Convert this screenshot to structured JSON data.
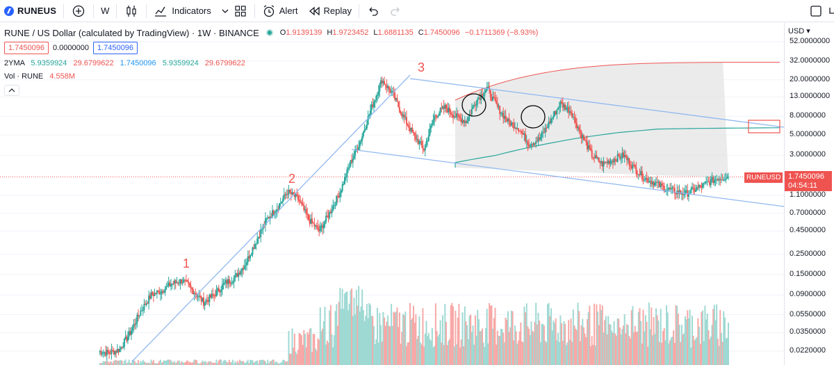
{
  "toolbar": {
    "symbol": "RUNEUS",
    "interval": "W",
    "indicators_label": "Indicators",
    "alert_label": "Alert",
    "replay_label": "Replay"
  },
  "legend": {
    "title": "RUNE / US Dollar (calculated by TradingView) · 1W · BINANCE",
    "o_label": "O",
    "o": "1.9139139",
    "h_label": "H",
    "h": "1.9723452",
    "l_label": "L",
    "l": "1.6881135",
    "c_label": "C",
    "c": "1.7450096",
    "change": "−0.1711369 (−8.93%)",
    "box_left": "1.7450096",
    "box_mid": "0.0000000",
    "box_right": "1.7450096",
    "ma_name": "2YMA",
    "ma_v1": "5.9359924",
    "ma_v2": "29.6799622",
    "ma_v3": "1.7450096",
    "ma_v4": "5.9359924",
    "ma_v5": "29.6799622",
    "vol_name": "Vol · RUNE",
    "vol_value": "4.558M"
  },
  "axis": {
    "currency": "USD",
    "ticks": [
      "52.0000000",
      "32.0000000",
      "20.0000000",
      "13.0000000",
      "8.0000000",
      "5.0000000",
      "3.0000000",
      "1.7450096",
      "1.1000000",
      "0.7000000",
      "0.4500000",
      "0.2500000",
      "0.1500000",
      "0.0900000",
      "0.0550000",
      "0.0350000",
      "0.0220000"
    ],
    "last_price": "1.7450096",
    "countdown": "04:54:11",
    "symbol_tag": "RUNEUSD"
  },
  "annotations": {
    "wave1": "1",
    "wave2": "2",
    "wave3": "3"
  },
  "colors": {
    "up": "#26a69a",
    "down": "#ef5350",
    "trend": "#90b8f0",
    "ma_upper": "#ef5350",
    "ma_mid": "#26a69a",
    "accent": "#2962ff"
  },
  "chart_data": {
    "type": "candlestick",
    "title": "RUNE / US Dollar (calculated by TradingView) · 1W · BINANCE",
    "y_scale": "log",
    "ylim": [
      0.019,
      60
    ],
    "y_ticks": [
      52,
      32,
      20,
      13,
      8,
      5,
      3,
      1.1,
      0.7,
      0.45,
      0.25,
      0.15,
      0.09,
      0.055,
      0.035,
      0.022
    ],
    "last_close": 1.7450096,
    "series": [
      {
        "name": "RUNE / US Dollar",
        "close_path": [
          0.022,
          0.021,
          0.023,
          0.035,
          0.06,
          0.09,
          0.1,
          0.12,
          0.13,
          0.1,
          0.075,
          0.09,
          0.12,
          0.14,
          0.2,
          0.35,
          0.6,
          0.8,
          1.2,
          1.0,
          0.6,
          0.45,
          0.7,
          1.2,
          2.5,
          4.5,
          10,
          20,
          14,
          8,
          5,
          3.5,
          8,
          10,
          8,
          7,
          12,
          16,
          10,
          7,
          6,
          4,
          4.5,
          7,
          11,
          9,
          5,
          3,
          2.4,
          2.7,
          3.0,
          2.2,
          1.7,
          1.5,
          1.3,
          1.2,
          1.15,
          1.3,
          1.5,
          1.7,
          1.75
        ]
      },
      {
        "name": "2YMA",
        "values": [
          2.5,
          3.0,
          3.8,
          4.6,
          5.3,
          5.8,
          5.9,
          5.95,
          6.0
        ]
      }
    ],
    "annotations": [
      "1",
      "2",
      "3"
    ],
    "volume_label": "Vol · RUNE",
    "volume_last": "4.558M"
  }
}
